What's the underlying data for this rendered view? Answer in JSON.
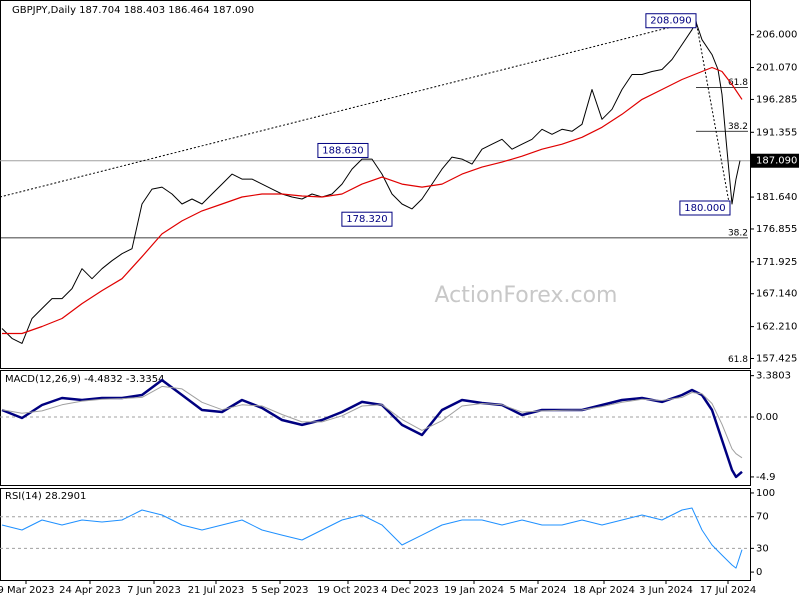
{
  "chart_data": [
    {
      "type": "line",
      "title": "GBPJPY,Daily 187.704 188.403 186.464 187.090",
      "watermark": "ActionForex.com",
      "xlim": [
        -1,
        374
      ],
      "ylim": [
        156,
        210.9
      ],
      "yticks": [
        {
          "value": 206,
          "label": "206.000"
        },
        {
          "value": 201.07,
          "label": "201.070"
        },
        {
          "value": 196.285,
          "label": "196.285"
        },
        {
          "value": 191.355,
          "label": "191.355"
        },
        {
          "value": 181.64,
          "label": "181.640"
        },
        {
          "value": 176.855,
          "label": "176.855"
        },
        {
          "value": 171.925,
          "label": "171.925"
        },
        {
          "value": 167.14,
          "label": "167.140"
        },
        {
          "value": 162.21,
          "label": "162.210"
        },
        {
          "value": 157.425,
          "label": "157.425"
        }
      ],
      "last_price": {
        "value": 187.09,
        "label": "187.090"
      },
      "series": [
        {
          "color": "#000000",
          "x": [
            0,
            5,
            10,
            15,
            20,
            25,
            30,
            35,
            40,
            45,
            50,
            55,
            60,
            65,
            70,
            75,
            80,
            85,
            90,
            95,
            100,
            105,
            110,
            115,
            120,
            125,
            130,
            135,
            140,
            145,
            150,
            155,
            160,
            165,
            170,
            175,
            180,
            185,
            190,
            195,
            200,
            205,
            210,
            215,
            220,
            225,
            230,
            235,
            240,
            245,
            250,
            255,
            260,
            265,
            270,
            275,
            280,
            285,
            290,
            295,
            300,
            305,
            310,
            315,
            320,
            325,
            330,
            335,
            340,
            345,
            347,
            350,
            355,
            358,
            360,
            362,
            365,
            367,
            369
          ],
          "values": [
            161.93,
            160.44,
            159.69,
            163.42,
            164.92,
            166.41,
            166.41,
            167.91,
            170.9,
            169.4,
            170.9,
            172.09,
            173.14,
            173.89,
            180.6,
            182.84,
            183.14,
            182.1,
            180.6,
            181.35,
            180.6,
            182.1,
            183.59,
            185.08,
            184.34,
            184.34,
            183.59,
            182.84,
            182.1,
            181.65,
            181.35,
            182.1,
            181.65,
            182.1,
            183.59,
            185.83,
            187.33,
            187.33,
            185.08,
            182.1,
            180.6,
            179.86,
            181.35,
            183.59,
            185.83,
            187.63,
            187.33,
            186.58,
            188.82,
            189.57,
            190.31,
            188.82,
            189.57,
            190.31,
            191.81,
            191.06,
            191.81,
            191.51,
            192.56,
            197.78,
            193.3,
            194.8,
            197.78,
            200.02,
            200.02,
            200.47,
            200.77,
            202.27,
            204.51,
            206.75,
            207.9,
            205.25,
            203.01,
            200.77,
            197.04,
            190.31,
            180.6,
            184.34,
            187.09
          ]
        },
        {
          "color": "#e00000",
          "x": [
            0,
            10,
            20,
            30,
            40,
            50,
            60,
            70,
            80,
            90,
            100,
            110,
            120,
            130,
            140,
            150,
            160,
            170,
            180,
            190,
            200,
            210,
            220,
            230,
            240,
            250,
            260,
            270,
            280,
            290,
            300,
            310,
            320,
            330,
            340,
            350,
            355,
            360,
            365,
            370
          ],
          "values": [
            161.18,
            161.18,
            162.23,
            163.42,
            165.66,
            167.61,
            169.4,
            172.69,
            176.12,
            178.06,
            179.56,
            180.6,
            181.65,
            182.1,
            182.1,
            181.8,
            181.65,
            182.1,
            183.59,
            184.64,
            183.59,
            183.14,
            183.59,
            185.08,
            186.13,
            186.88,
            187.77,
            188.82,
            189.57,
            190.61,
            192.11,
            194.05,
            196.29,
            197.78,
            199.28,
            200.47,
            201.07,
            200.47,
            198.53,
            196.29
          ]
        }
      ],
      "annotations": [
        {
          "text": "208.090",
          "x": 347,
          "value": 208.09
        },
        {
          "text": "188.630",
          "x": 183,
          "value": 188.63
        },
        {
          "text": "178.320",
          "x": 195,
          "value": 178.32
        },
        {
          "text": "180.000",
          "x": 364,
          "value": 180
        }
      ],
      "levels": [
        {
          "label": "61.8",
          "value": 198.08,
          "from": 347
        },
        {
          "label": "38.2",
          "value": 191.51,
          "from": 347
        },
        {
          "label": "38.2",
          "value": 175.52,
          "from": -1
        },
        {
          "label": "61.8",
          "value": 156.55,
          "from": 374
        }
      ],
      "trendlines": [
        {
          "x": [
            -1,
            347
          ],
          "values": [
            181.65,
            208.09
          ]
        },
        {
          "x": [
            347,
            364
          ],
          "values": [
            208.09,
            180
          ]
        }
      ]
    },
    {
      "type": "line",
      "title": "MACD(12,26,9) -4.4832 -3.3354",
      "ylim": [
        -5.56,
        3.76
      ],
      "yticks": [
        3.3803,
        {
          "value": 0,
          "label": "0.00"
        },
        -4.9
      ],
      "levels": [
        0
      ],
      "series": [
        {
          "color": "#000080",
          "x": [
            0,
            10,
            20,
            30,
            40,
            50,
            60,
            70,
            80,
            90,
            100,
            110,
            120,
            130,
            140,
            150,
            160,
            170,
            180,
            190,
            200,
            210,
            220,
            230,
            240,
            250,
            260,
            270,
            280,
            290,
            300,
            310,
            320,
            330,
            340,
            345,
            350,
            355,
            360,
            365,
            367,
            370
          ],
          "values": [
            0.57,
            -0.08,
            0.98,
            1.55,
            1.39,
            1.55,
            1.55,
            1.8,
            3.02,
            1.8,
            0.57,
            0.41,
            1.39,
            0.74,
            -0.25,
            -0.65,
            -0.25,
            0.41,
            1.23,
            0.98,
            -0.65,
            -1.47,
            0.57,
            1.39,
            1.14,
            0.98,
            0.16,
            0.57,
            0.57,
            0.57,
            0.98,
            1.39,
            1.55,
            1.23,
            1.8,
            2.21,
            1.8,
            0.57,
            -1.88,
            -4.33,
            -4.9,
            -4.48
          ]
        },
        {
          "color": "#a0a0a0",
          "x": [
            0,
            10,
            20,
            30,
            40,
            50,
            60,
            70,
            80,
            90,
            100,
            110,
            120,
            130,
            140,
            150,
            160,
            170,
            180,
            190,
            200,
            210,
            220,
            230,
            240,
            250,
            260,
            270,
            280,
            290,
            300,
            310,
            320,
            330,
            340,
            345,
            350,
            355,
            360,
            365,
            367,
            370
          ],
          "values": [
            0.6,
            0.3,
            0.5,
            1.0,
            1.3,
            1.45,
            1.5,
            1.6,
            2.5,
            2.3,
            1.2,
            0.6,
            1.0,
            0.9,
            0.2,
            -0.4,
            -0.4,
            0.1,
            0.9,
            1.0,
            -0.2,
            -1.1,
            -0.3,
            0.9,
            1.1,
            1.0,
            0.4,
            0.5,
            0.55,
            0.57,
            0.85,
            1.2,
            1.45,
            1.35,
            1.6,
            2.0,
            1.9,
            1.1,
            -0.6,
            -2.6,
            -3.0,
            -3.34
          ]
        }
      ]
    },
    {
      "type": "line",
      "title": "RSI(14) 28.2901",
      "ylim": [
        -10,
        105
      ],
      "yticks": [
        100,
        70,
        30,
        0
      ],
      "levels": [
        70,
        30
      ],
      "xticks": [
        {
          "value": 12,
          "label": "9 Mar 2023"
        },
        {
          "value": 44,
          "label": "24 Apr 2023"
        },
        {
          "value": 76,
          "label": "7 Jun 2023"
        },
        {
          "value": 107,
          "label": "21 Jul 2023"
        },
        {
          "value": 139,
          "label": "5 Sep 2023"
        },
        {
          "value": 173,
          "label": "19 Oct 2023"
        },
        {
          "value": 204,
          "label": "4 Dec 2023"
        },
        {
          "value": 236,
          "label": "19 Jan 2024"
        },
        {
          "value": 268,
          "label": "5 Mar 2024"
        },
        {
          "value": 301,
          "label": "18 Apr 2024"
        },
        {
          "value": 332,
          "label": "3 Jun 2024"
        },
        {
          "value": 363,
          "label": "17 Jul 2024"
        }
      ],
      "series": [
        {
          "color": "#1e90ff",
          "x": [
            0,
            10,
            20,
            30,
            40,
            50,
            60,
            70,
            80,
            90,
            100,
            110,
            120,
            130,
            140,
            150,
            160,
            170,
            180,
            190,
            200,
            210,
            220,
            230,
            240,
            250,
            260,
            270,
            280,
            290,
            300,
            310,
            320,
            330,
            340,
            345,
            350,
            355,
            360,
            365,
            367,
            370
          ],
          "values": [
            59.5,
            53.2,
            65.8,
            59.5,
            65.8,
            63.3,
            65.8,
            78.5,
            72.2,
            59.5,
            53.2,
            59.5,
            65.8,
            53.2,
            46.8,
            40.5,
            53.2,
            65.8,
            72.2,
            59.5,
            34.2,
            46.8,
            59.5,
            65.8,
            65.8,
            59.5,
            65.8,
            59.5,
            59.5,
            65.8,
            59.5,
            65.8,
            72.2,
            65.8,
            78.5,
            81.0,
            53.2,
            34.2,
            21.5,
            8.9,
            5.1,
            28.29
          ]
        }
      ]
    }
  ]
}
